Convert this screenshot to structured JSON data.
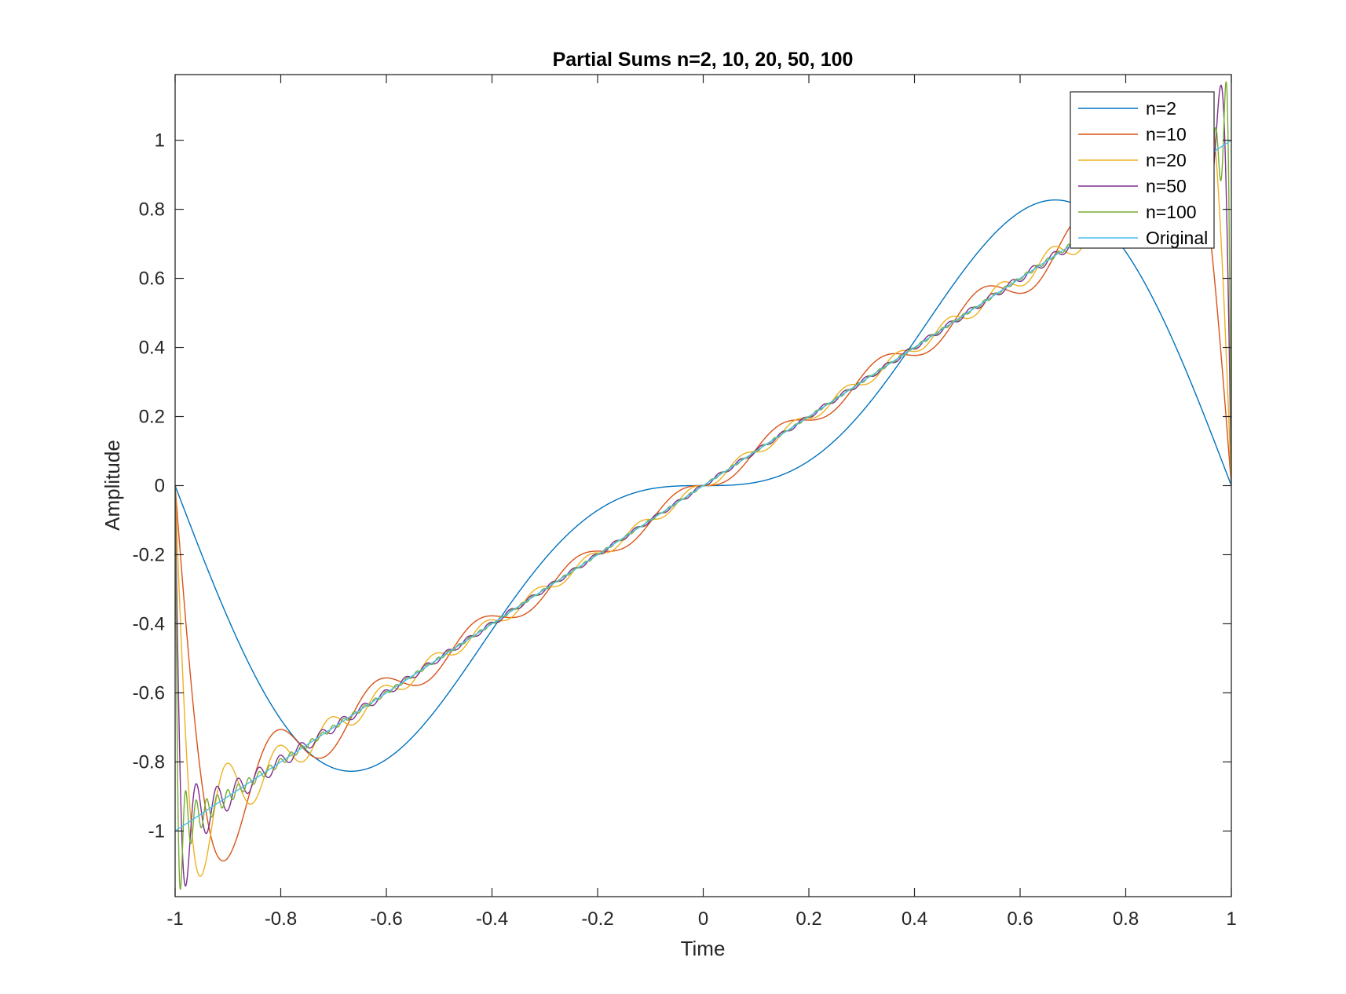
{
  "chart_data": {
    "type": "line",
    "title": "Partial Sums n=2, 10, 20, 50, 100",
    "xlabel": "Time",
    "ylabel": "Amplitude",
    "xlim": [
      -1,
      1
    ],
    "ylim": [
      -1.19,
      1.19
    ],
    "grid": false,
    "legend_position": "top-right",
    "xticks": [
      -1,
      -0.8,
      -0.6,
      -0.4,
      -0.2,
      0,
      0.2,
      0.4,
      0.6,
      0.8,
      1
    ],
    "xtick_labels": [
      "-1",
      "-0.8",
      "-0.6",
      "-0.4",
      "-0.2",
      "0",
      "0.2",
      "0.4",
      "0.6",
      "0.8",
      "1"
    ],
    "yticks": [
      -1,
      -0.8,
      -0.6,
      -0.4,
      -0.2,
      0,
      0.2,
      0.4,
      0.6,
      0.8,
      1
    ],
    "ytick_labels": [
      "-1",
      "-0.8",
      "-0.6",
      "-0.4",
      "-0.2",
      "0",
      "0.2",
      "0.4",
      "0.6",
      "0.8",
      "1"
    ],
    "series": [
      {
        "name": "n=2",
        "harmonics": 2,
        "color": "#0072BD"
      },
      {
        "name": "n=10",
        "harmonics": 10,
        "color": "#D95319"
      },
      {
        "name": "n=20",
        "harmonics": 20,
        "color": "#EDB120"
      },
      {
        "name": "n=50",
        "harmonics": 50,
        "color": "#7E2F8E"
      },
      {
        "name": "n=100",
        "harmonics": 100,
        "color": "#77AC30"
      },
      {
        "name": "Original",
        "function": "y = x",
        "color": "#4DBEEE"
      }
    ]
  }
}
